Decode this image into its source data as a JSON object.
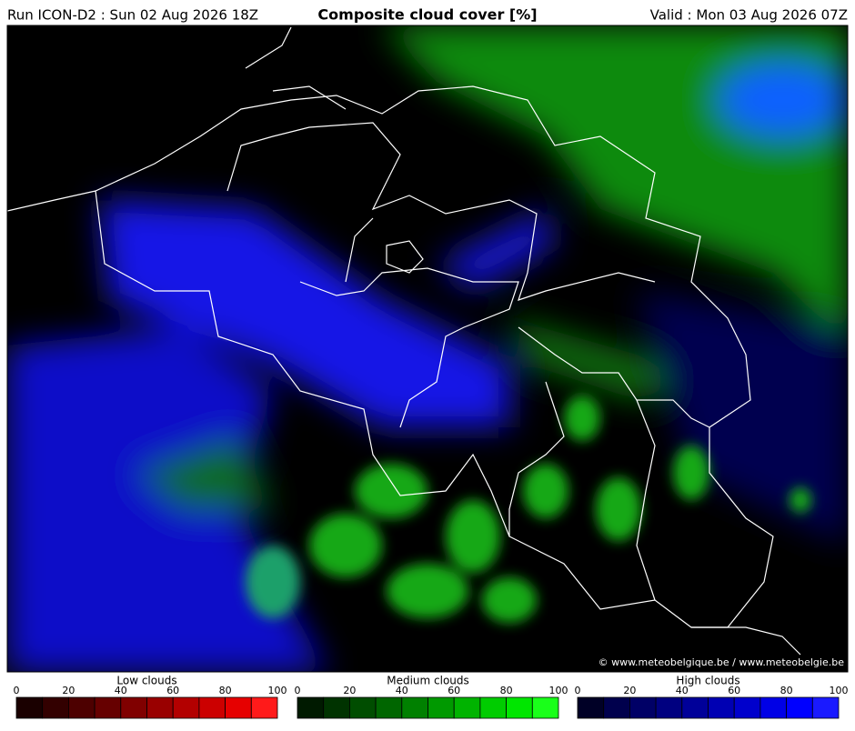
{
  "header": {
    "run": "Run ICON-D2 : Sun 02 Aug 2026 18Z",
    "title": "Composite cloud cover [%]",
    "valid": "Valid : Mon 03 Aug 2026 07Z"
  },
  "map": {
    "credit": "© www.meteobelgique.be / www.meteobelgie.be"
  },
  "legends": [
    {
      "title": "Low clouds",
      "ticks": [
        0,
        20,
        40,
        60,
        80,
        100
      ],
      "colors": [
        "#1a0000",
        "#330000",
        "#4d0000",
        "#660000",
        "#800000",
        "#990000",
        "#b30000",
        "#cc0000",
        "#e60000",
        "#ff1a1a"
      ]
    },
    {
      "title": "Medium clouds",
      "ticks": [
        0,
        20,
        40,
        60,
        80,
        100
      ],
      "colors": [
        "#001a00",
        "#003300",
        "#004d00",
        "#006600",
        "#008000",
        "#009900",
        "#00b300",
        "#00cc00",
        "#00e600",
        "#1aff1a"
      ]
    },
    {
      "title": "High clouds",
      "ticks": [
        0,
        20,
        40,
        60,
        80,
        100
      ],
      "colors": [
        "#000026",
        "#00004d",
        "#000066",
        "#000080",
        "#000099",
        "#0000b3",
        "#0000cc",
        "#0000e6",
        "#0000ff",
        "#1a1aff"
      ]
    }
  ]
}
